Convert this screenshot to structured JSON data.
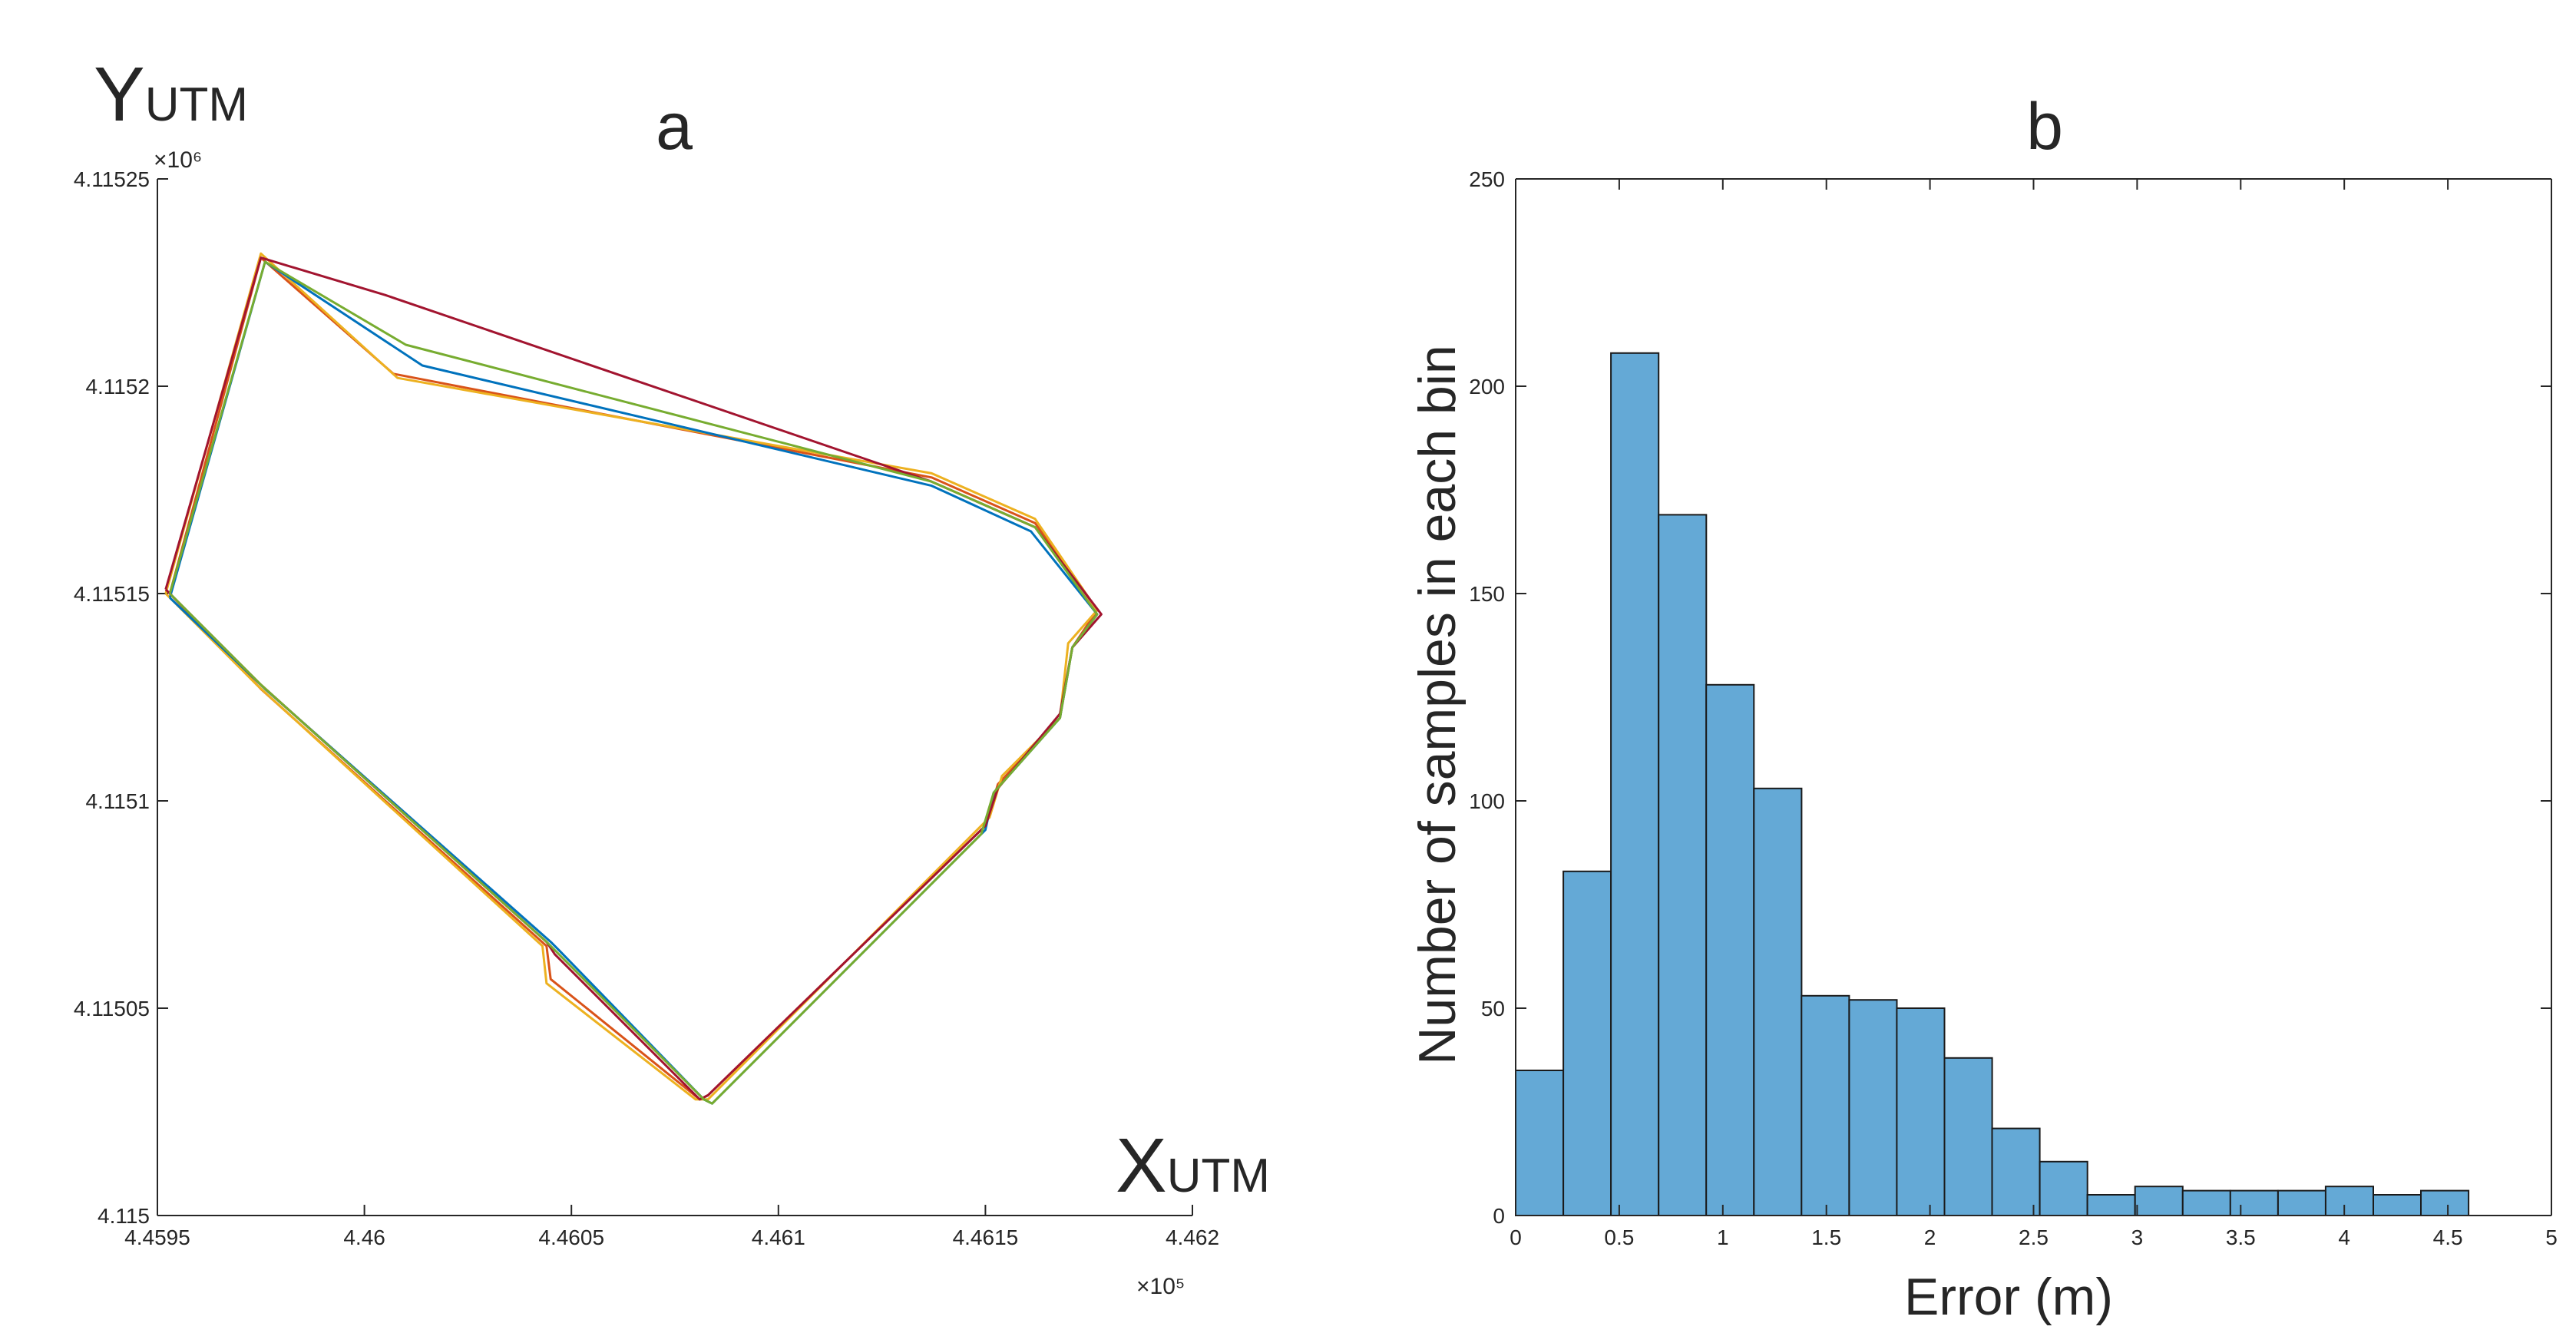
{
  "chart_data": [
    {
      "type": "line",
      "title": "a",
      "xlabel": "X",
      "xlabel_sub": "UTM",
      "ylabel": "Y",
      "ylabel_sub": "UTM",
      "x_exponent": "×10⁵",
      "y_exponent": "×10⁶",
      "xlim": [
        4.4595,
        4.462
      ],
      "ylim": [
        4.115,
        4.11525
      ],
      "xticks": [
        4.4595,
        4.46,
        4.4605,
        4.461,
        4.4615,
        4.462
      ],
      "xtick_labels": [
        "4.4595",
        "4.46",
        "4.4605",
        "4.461",
        "4.4615",
        "4.462"
      ],
      "yticks": [
        4.115,
        4.11505,
        4.1151,
        4.11515,
        4.1152,
        4.11525
      ],
      "ytick_labels": [
        "4.115",
        "4.11505",
        "4.1151",
        "4.11515",
        "4.1152",
        "4.11525"
      ],
      "grid": false,
      "series": [
        {
          "color": "#d95319",
          "points": [
            [
              4.45953,
              4.11515
            ],
            [
              4.45975,
              4.115231
            ],
            [
              4.46007,
              4.115203
            ],
            [
              4.46137,
              4.115178
            ],
            [
              4.46162,
              4.115167
            ],
            [
              4.46177,
              4.115146
            ],
            [
              4.46171,
              4.115137
            ],
            [
              4.46168,
              4.11512
            ],
            [
              4.46153,
              4.115104
            ],
            [
              4.4615,
              4.115094
            ],
            [
              4.46083,
              4.115029
            ],
            [
              4.46081,
              4.115028
            ],
            [
              4.46045,
              4.115057
            ],
            [
              4.46044,
              4.115065
            ],
            [
              4.45975,
              4.115127
            ],
            [
              4.45953,
              4.11515
            ]
          ]
        },
        {
          "color": "#edb120",
          "points": [
            [
              4.45952,
              4.11515
            ],
            [
              4.45975,
              4.115232
            ],
            [
              4.46008,
              4.115202
            ],
            [
              4.46137,
              4.115179
            ],
            [
              4.46162,
              4.115168
            ],
            [
              4.46177,
              4.115146
            ],
            [
              4.4617,
              4.115138
            ],
            [
              4.46168,
              4.11512
            ],
            [
              4.46154,
              4.115106
            ],
            [
              4.46151,
              4.115096
            ],
            [
              4.46083,
              4.115028
            ],
            [
              4.4608,
              4.115028
            ],
            [
              4.46044,
              4.115056
            ],
            [
              4.46043,
              4.115065
            ],
            [
              4.45974,
              4.115128
            ],
            [
              4.45952,
              4.11515
            ]
          ]
        },
        {
          "color": "#0072bd",
          "points": [
            [
              4.45953,
              4.115149
            ],
            [
              4.45976,
              4.11523
            ],
            [
              4.46014,
              4.115205
            ],
            [
              4.46137,
              4.115176
            ],
            [
              4.46161,
              4.115165
            ],
            [
              4.46177,
              4.115145
            ],
            [
              4.46171,
              4.115137
            ],
            [
              4.46168,
              4.11512
            ],
            [
              4.46152,
              4.115102
            ],
            [
              4.4615,
              4.115093
            ],
            [
              4.46084,
              4.115027
            ],
            [
              4.46082,
              4.115028
            ],
            [
              4.46047,
              4.115064
            ],
            [
              4.46045,
              4.115066
            ],
            [
              4.45976,
              4.115127
            ],
            [
              4.45953,
              4.115149
            ]
          ]
        },
        {
          "color": "#a2142f",
          "points": [
            [
              4.45952,
              4.115151
            ],
            [
              4.45975,
              4.115231
            ],
            [
              4.46005,
              4.115222
            ],
            [
              4.46137,
              4.115177
            ],
            [
              4.46162,
              4.115166
            ],
            [
              4.46178,
              4.115145
            ],
            [
              4.46171,
              4.115137
            ],
            [
              4.46168,
              4.115121
            ],
            [
              4.46153,
              4.115103
            ],
            [
              4.4615,
              4.115094
            ],
            [
              4.46083,
              4.115029
            ],
            [
              4.46081,
              4.115028
            ],
            [
              4.46046,
              4.115063
            ],
            [
              4.46044,
              4.115066
            ],
            [
              4.45975,
              4.115128
            ],
            [
              4.45952,
              4.115151
            ]
          ]
        },
        {
          "color": "#77ac30",
          "points": [
            [
              4.45953,
              4.11515
            ],
            [
              4.45976,
              4.11523
            ],
            [
              4.4601,
              4.11521
            ],
            [
              4.46137,
              4.115177
            ],
            [
              4.46162,
              4.115166
            ],
            [
              4.46177,
              4.115145
            ],
            [
              4.46171,
              4.115137
            ],
            [
              4.46168,
              4.11512
            ],
            [
              4.46152,
              4.115102
            ],
            [
              4.46149,
              4.115092
            ],
            [
              4.46084,
              4.115027
            ],
            [
              4.46082,
              4.115028
            ],
            [
              4.46046,
              4.115064
            ],
            [
              4.46044,
              4.115066
            ],
            [
              4.45975,
              4.115128
            ],
            [
              4.45953,
              4.11515
            ]
          ]
        }
      ]
    },
    {
      "type": "bar",
      "title": "b",
      "xlabel": "Error (m)",
      "ylabel": "Number of samples in each bin",
      "xlim": [
        0,
        5
      ],
      "ylim": [
        0,
        250
      ],
      "xticks": [
        0,
        0.5,
        1,
        1.5,
        2,
        2.5,
        3,
        3.5,
        4,
        4.5,
        5
      ],
      "xtick_labels": [
        "0",
        "0.5",
        "1",
        "1.5",
        "2",
        "2.5",
        "3",
        "3.5",
        "4",
        "4.5",
        "5"
      ],
      "yticks": [
        0,
        50,
        100,
        150,
        200,
        250
      ],
      "ytick_labels": [
        "0",
        "50",
        "100",
        "150",
        "200",
        "250"
      ],
      "grid": false,
      "bar_color": "#64a9d6",
      "bin_width": 0.23,
      "bin_starts": [
        0,
        0.23,
        0.46,
        0.69,
        0.92,
        1.15,
        1.38,
        1.61,
        1.84,
        2.07,
        2.3,
        2.53,
        2.76,
        2.99,
        3.22,
        3.45,
        3.68,
        3.91,
        4.14,
        4.37
      ],
      "values": [
        35,
        83,
        208,
        169,
        128,
        103,
        53,
        52,
        50,
        38,
        21,
        13,
        5,
        7,
        6,
        6,
        6,
        7,
        5,
        6
      ]
    }
  ]
}
